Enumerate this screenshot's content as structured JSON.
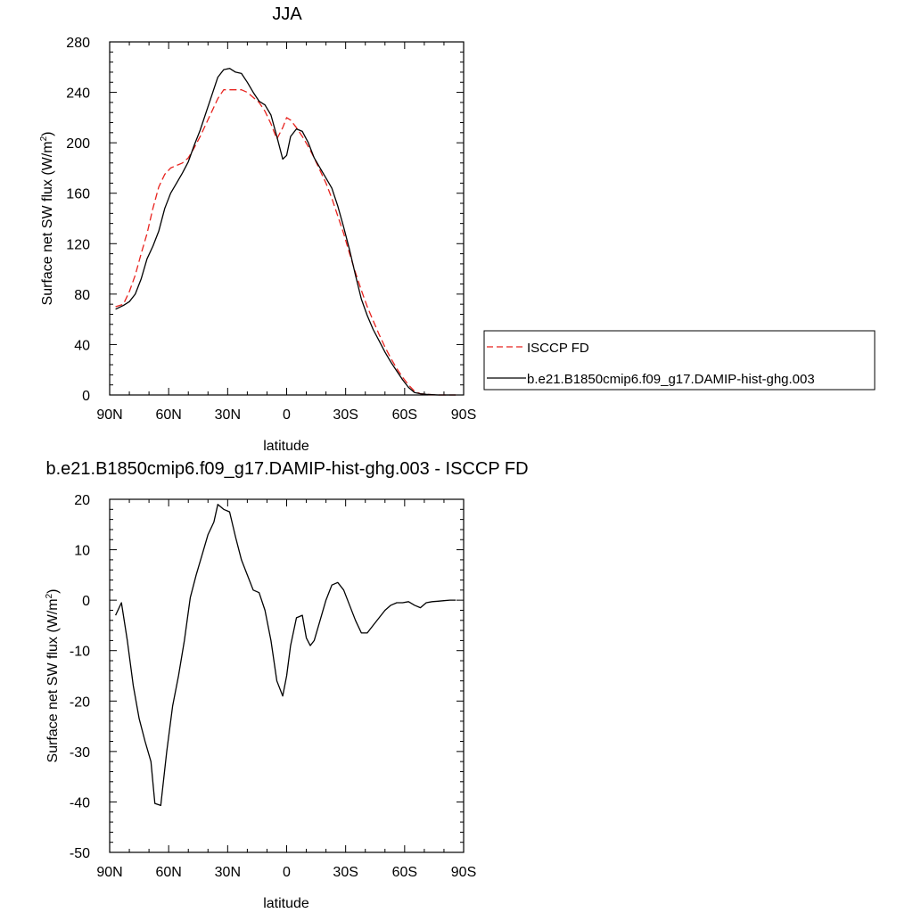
{
  "chart_data": [
    {
      "type": "line",
      "title": "JJA",
      "xlabel": "latitude",
      "ylabel": "Surface net SW flux (W/m²)",
      "ylabel_parts": [
        "Surface net SW flux (W/m",
        "2",
        ")"
      ],
      "xlim": [
        90,
        -90
      ],
      "ylim": [
        0,
        280
      ],
      "xticks": [
        90,
        60,
        30,
        0,
        -30,
        -60,
        -90
      ],
      "xticklabels": [
        "90N",
        "60N",
        "30N",
        "0",
        "30S",
        "60S",
        "90S"
      ],
      "yticks": [
        0,
        40,
        80,
        120,
        160,
        200,
        240,
        280
      ],
      "yticklabels": [
        "0",
        "40",
        "80",
        "120",
        "160",
        "200",
        "240",
        "280"
      ],
      "legend_position": "right",
      "series": [
        {
          "name": "ISCCP FD",
          "color": "#e8231e",
          "dash": "dashed",
          "x": [
            87,
            83,
            80,
            77,
            74,
            71,
            68,
            65,
            62,
            59,
            56,
            53,
            50,
            47,
            44,
            41,
            38,
            35,
            32,
            29,
            26,
            23,
            20,
            17,
            14,
            11,
            8,
            5,
            2,
            0,
            -2,
            -5,
            -8,
            -11,
            -14,
            -17,
            -20,
            -23,
            -26,
            -29,
            -32,
            -35,
            -38,
            -41,
            -44,
            -47,
            -50,
            -53,
            -56,
            -59,
            -62,
            -65,
            -68,
            -71,
            -74,
            -77,
            -80,
            -83,
            -86
          ],
          "y": [
            70,
            72,
            82,
            95,
            112,
            128,
            148,
            165,
            175,
            180,
            182,
            184,
            188,
            196,
            205,
            215,
            225,
            235,
            242,
            242,
            242,
            242,
            240,
            236,
            232,
            225,
            215,
            203,
            212,
            220,
            218,
            212,
            205,
            197,
            188,
            178,
            168,
            156,
            142,
            128,
            112,
            97,
            83,
            70,
            59,
            48,
            38,
            29,
            21,
            14,
            8,
            3,
            1,
            0.5,
            0.2,
            0,
            0,
            0,
            0
          ]
        },
        {
          "name": "b.e21.B1850cmip6.f09_g17.DAMIP-hist-ghg.003",
          "color": "#000000",
          "dash": "solid",
          "x": [
            87,
            83,
            80,
            77,
            74,
            71,
            68,
            65,
            62,
            59,
            56,
            53,
            50,
            47,
            44,
            41,
            38,
            35,
            32,
            29,
            26,
            23,
            20,
            17,
            14,
            11,
            8,
            5,
            2,
            0,
            -2,
            -5,
            -8,
            -11,
            -14,
            -17,
            -20,
            -23,
            -26,
            -29,
            -32,
            -35,
            -38,
            -41,
            -44,
            -47,
            -50,
            -53,
            -56,
            -59,
            -62,
            -65,
            -68,
            -71,
            -74,
            -77,
            -80,
            -83,
            -86
          ],
          "y": [
            68,
            71,
            74,
            80,
            92,
            108,
            118,
            130,
            148,
            160,
            168,
            176,
            185,
            198,
            210,
            224,
            238,
            252,
            258,
            259,
            256,
            255,
            248,
            240,
            233,
            230,
            222,
            205,
            187,
            190,
            205,
            211,
            209,
            200,
            188,
            180,
            172,
            164,
            150,
            133,
            115,
            95,
            76,
            63,
            52,
            43,
            34,
            26,
            19,
            12,
            6,
            2,
            1,
            0.5,
            0.2,
            0,
            0,
            0,
            0
          ]
        }
      ]
    },
    {
      "type": "line",
      "title": "b.e21.B1850cmip6.f09_g17.DAMIP-hist-ghg.003 - ISCCP FD",
      "xlabel": "latitude",
      "ylabel": "Surface net SW flux (W/m²)",
      "ylabel_parts": [
        "Surface net SW flux (W/m",
        "2",
        ")"
      ],
      "xlim": [
        90,
        -90
      ],
      "ylim": [
        -50,
        20
      ],
      "xticks": [
        90,
        60,
        30,
        0,
        -30,
        -60,
        -90
      ],
      "xticklabels": [
        "90N",
        "60N",
        "30N",
        "0",
        "30S",
        "60S",
        "90S"
      ],
      "yticks": [
        -50,
        -40,
        -30,
        -20,
        -10,
        0,
        10,
        20
      ],
      "yticklabels": [
        "-50",
        "-40",
        "-30",
        "-20",
        "-10",
        "0",
        "10",
        "20"
      ],
      "series": [
        {
          "color": "#000000",
          "dash": "solid",
          "x": [
            87,
            84,
            81,
            78,
            75,
            72,
            69,
            67,
            64,
            61,
            58,
            55,
            52,
            49,
            46,
            43,
            40,
            37,
            35,
            32,
            29,
            26,
            23,
            20,
            17,
            14,
            11,
            8,
            5,
            2,
            0,
            -2,
            -5,
            -8,
            -10,
            -12,
            -14,
            -17,
            -20,
            -23,
            -26,
            -29,
            -32,
            -35,
            -38,
            -41,
            -44,
            -47,
            -50,
            -53,
            -56,
            -59,
            -62,
            -65,
            -68,
            -71,
            -74,
            -77,
            -80,
            -83,
            -86
          ],
          "y": [
            -3,
            -0.5,
            -8,
            -17,
            -23.5,
            -28,
            -32,
            -40.3,
            -40.7,
            -30,
            -21,
            -15,
            -8,
            0.5,
            5,
            9,
            13,
            15.5,
            19,
            18,
            17.5,
            12.5,
            8,
            5,
            2,
            1.5,
            -2,
            -8,
            -16,
            -19,
            -15,
            -9,
            -3.5,
            -3,
            -7.5,
            -9,
            -8,
            -4,
            0,
            3,
            3.5,
            2,
            -1,
            -4,
            -6.5,
            -6.5,
            -5,
            -3.5,
            -2,
            -1,
            -0.5,
            -0.5,
            -0.3,
            -1,
            -1.5,
            -0.5,
            -0.3,
            -0.2,
            -0.1,
            0,
            0
          ]
        }
      ]
    }
  ]
}
